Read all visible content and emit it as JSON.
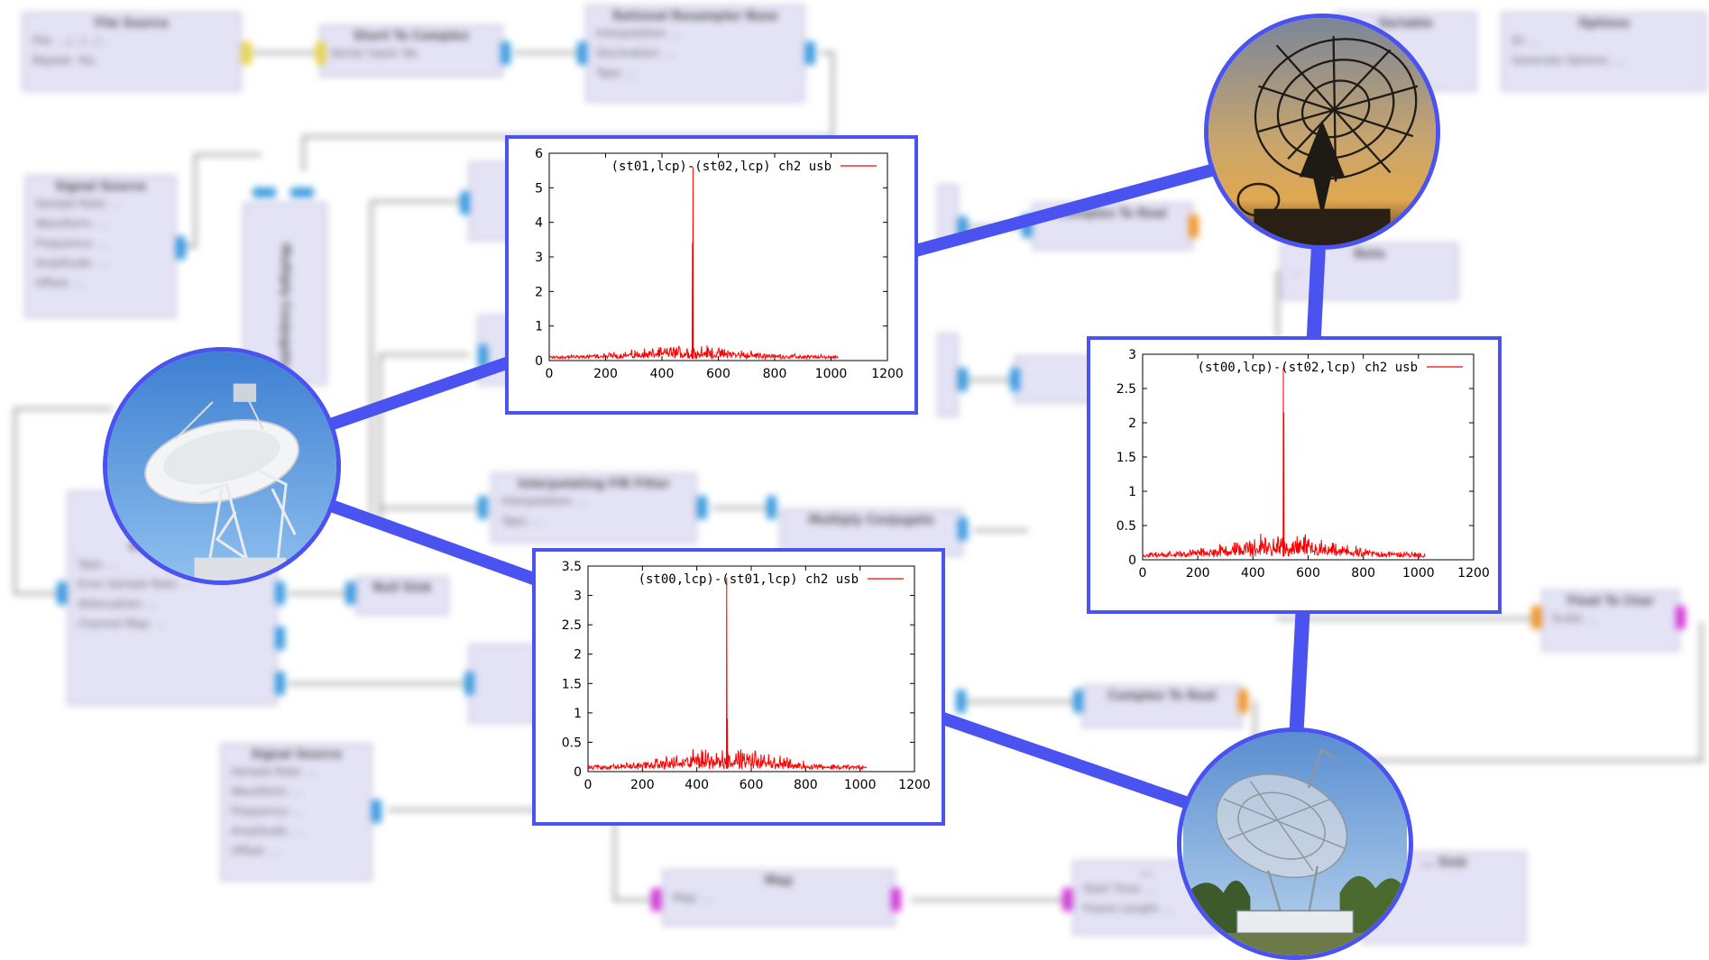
{
  "flowgraph": {
    "blocks": [
      {
        "title": "File Source",
        "rows": [
          "File: .../.../.../...",
          "Repeat: Yes"
        ]
      },
      {
        "title": "Short To Complex",
        "rows": [
          "Vector Input: No"
        ]
      },
      {
        "title": "Rational Resampler Base",
        "rows": [
          "Interpolation: ...",
          "Decimation: ...",
          "Taps: ..."
        ]
      },
      {
        "title": "Variable",
        "rows": [
          "...",
          "..."
        ]
      },
      {
        "title": "Options",
        "rows": [
          "ID: ...",
          "Generate Options: ..."
        ]
      },
      {
        "title": "Signal Source",
        "rows": [
          "Sample Rate: ...",
          "Waveform: ...",
          "Frequency: ...",
          "Amplitude: ...",
          "Offset: ..."
        ]
      },
      {
        "title": "Multiply Conjugate",
        "rows": []
      },
      {
        "title": "Complex To Real",
        "rows": []
      },
      {
        "title": "Note",
        "rows": [
          "..."
        ]
      },
      {
        "title": "Interpolating FIR Filter",
        "rows": [
          "Interpolation: ...",
          "Taps: ..."
        ]
      },
      {
        "title": "Multiply Conjugate",
        "rows": []
      },
      {
        "title": "Polyphase ...",
        "rows": [
          "Taps: ...",
          "Error Sample Rate: ...",
          "Attenuation: ...",
          "Channel Map: ..."
        ]
      },
      {
        "title": "Null Sink",
        "rows": []
      },
      {
        "title": "Complex To Real",
        "rows": []
      },
      {
        "title": "Float To Char",
        "rows": [
          "Scale: ..."
        ]
      },
      {
        "title": "Signal Source",
        "rows": [
          "Sample Rate: ...",
          "Waveform: ...",
          "Frequency: ...",
          "Amplitude: ...",
          "Offset: ..."
        ]
      },
      {
        "title": "Map",
        "rows": [
          "Map: ..."
        ]
      },
      {
        "title": "...",
        "rows": [
          "Start Time: ...",
          "Frame Length: ..."
        ]
      },
      {
        "title": "... Sink",
        "rows": [
          "...",
          "...",
          "..."
        ]
      }
    ]
  },
  "colors": {
    "accent": "#4a52f0",
    "trace": "#ff0000",
    "port_blue": "#3a9be0",
    "port_yellow": "#e8d44a",
    "port_orange": "#f0952a",
    "port_magenta": "#d23ad8"
  },
  "photos": [
    {
      "name": "telescope-photo-top-right",
      "depicts": "radio telescope dish silhouette at sunset"
    },
    {
      "name": "telescope-photo-left",
      "depicts": "white radio telescope dish against blue sky"
    },
    {
      "name": "telescope-photo-bottom-right",
      "depicts": "radio telescope dish over a building with trees"
    }
  ],
  "chart_data": [
    {
      "type": "line",
      "legend": "(st01,lcp)-(st02,lcp) ch2 usb",
      "legend_position": "top-right",
      "grid": false,
      "xlim": [
        0,
        1200
      ],
      "ylim": [
        0,
        6
      ],
      "xticks": [
        "0",
        "200",
        "400",
        "600",
        "800",
        "1000",
        "1200"
      ],
      "yticks": [
        "0",
        "1",
        "2",
        "3",
        "4",
        "5",
        "6"
      ],
      "series": [
        {
          "name": "(st01,lcp)-(st02,lcp) ch2 usb",
          "color": "#ff0000",
          "x_range": [
            0,
            1024
          ],
          "noise_floor": 0.12,
          "noise_hump_peak": 0.35,
          "peaks": [
            {
              "x": 510,
              "y": 5.6
            },
            {
              "x": 508,
              "y": 3.4
            }
          ]
        }
      ]
    },
    {
      "type": "line",
      "legend": "(st00,lcp)-(st02,lcp) ch2 usb",
      "legend_position": "top-right",
      "grid": false,
      "xlim": [
        0,
        1200
      ],
      "ylim": [
        0,
        3
      ],
      "xticks": [
        "0",
        "200",
        "400",
        "600",
        "800",
        "1000",
        "1200"
      ],
      "yticks": [
        "0",
        "0.5",
        "1",
        "1.5",
        "2",
        "2.5",
        "3"
      ],
      "series": [
        {
          "name": "(st00,lcp)-(st02,lcp) ch2 usb",
          "color": "#ff0000",
          "x_range": [
            0,
            1024
          ],
          "noise_floor": 0.08,
          "noise_hump_peak": 0.32,
          "peaks": [
            {
              "x": 510,
              "y": 2.8
            },
            {
              "x": 512,
              "y": 2.15
            }
          ]
        }
      ]
    },
    {
      "type": "line",
      "legend": "(st00,lcp)-(st01,lcp) ch2 usb",
      "legend_position": "top-right",
      "grid": false,
      "xlim": [
        0,
        1200
      ],
      "ylim": [
        0,
        3.5
      ],
      "xticks": [
        "0",
        "200",
        "400",
        "600",
        "800",
        "1000",
        "1200"
      ],
      "yticks": [
        "0",
        "0.5",
        "1",
        "1.5",
        "2",
        "2.5",
        "3",
        "3.5"
      ],
      "series": [
        {
          "name": "(st00,lcp)-(st01,lcp) ch2 usb",
          "color": "#ff0000",
          "x_range": [
            0,
            1024
          ],
          "noise_floor": 0.08,
          "noise_hump_peak": 0.35,
          "peaks": [
            {
              "x": 510,
              "y": 3.3
            },
            {
              "x": 512,
              "y": 0.9
            }
          ]
        }
      ]
    }
  ]
}
